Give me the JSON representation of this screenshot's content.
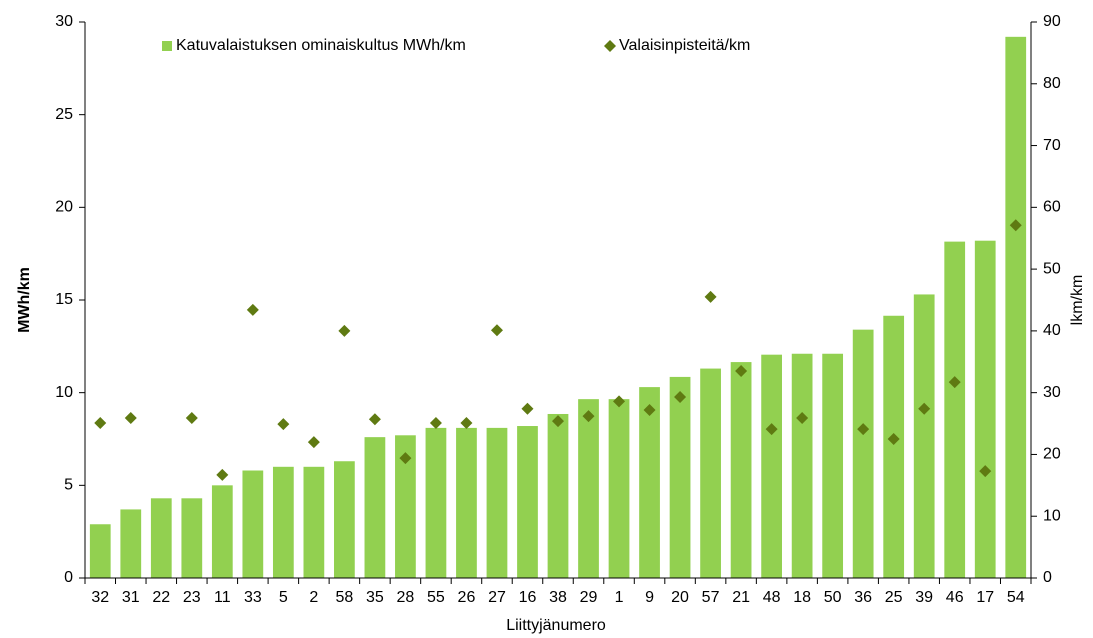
{
  "chart_data": {
    "type": "bar",
    "x_label": "Liittyjänumero",
    "y_label": "MWh/km",
    "y2_label": "lkm/km",
    "categories": [
      "32",
      "31",
      "22",
      "23",
      "11",
      "33",
      "5",
      "2",
      "58",
      "35",
      "28",
      "55",
      "26",
      "27",
      "16",
      "38",
      "29",
      "1",
      "9",
      "20",
      "57",
      "21",
      "48",
      "18",
      "50",
      "36",
      "25",
      "39",
      "46",
      "17",
      "54"
    ],
    "series": [
      {
        "name": "Katuvalaistuksen ominaiskultus MWh/km",
        "type": "bar",
        "color": "#92d050",
        "values": [
          2.9,
          3.7,
          4.3,
          4.3,
          5.0,
          5.8,
          6.0,
          6.0,
          6.3,
          7.6,
          7.7,
          8.1,
          8.1,
          8.1,
          8.2,
          8.85,
          9.65,
          9.65,
          10.3,
          10.85,
          11.3,
          11.65,
          12.05,
          12.1,
          12.1,
          13.4,
          14.15,
          15.3,
          18.15,
          18.2,
          29.2
        ]
      },
      {
        "name": "Valaisinpisteitä/km",
        "type": "scatter",
        "axis": "y2",
        "color": "#5f7a12",
        "values": [
          25.1,
          25.9,
          null,
          25.9,
          16.7,
          43.4,
          24.9,
          22.0,
          40.0,
          25.7,
          19.4,
          25.1,
          25.1,
          40.1,
          27.4,
          25.4,
          26.2,
          28.6,
          27.2,
          29.3,
          45.5,
          33.5,
          24.1,
          25.9,
          null,
          24.1,
          22.5,
          27.4,
          31.7,
          17.3,
          57.1
        ]
      }
    ],
    "ylim": [
      0,
      30
    ],
    "yticks": [
      0,
      5,
      10,
      15,
      20,
      25,
      30
    ],
    "y2lim": [
      0,
      90
    ],
    "y2ticks": [
      0,
      10,
      20,
      30,
      40,
      50,
      60,
      70,
      80,
      90
    ],
    "legend": "top"
  }
}
